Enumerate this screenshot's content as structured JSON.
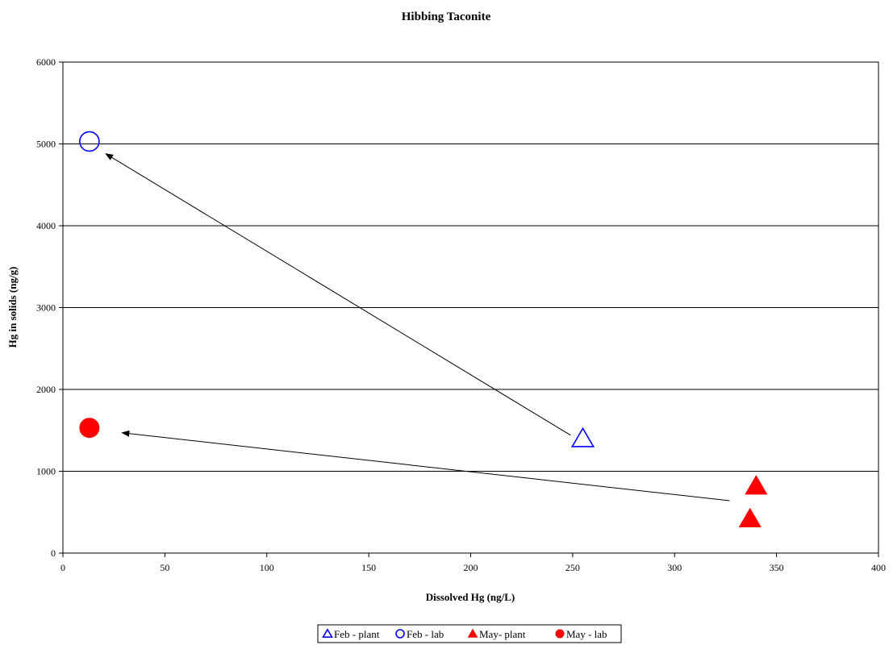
{
  "chart_data": {
    "type": "scatter",
    "title": "Hibbing Taconite",
    "xlabel": "Dissolved Hg (ng/L)",
    "ylabel": "Hg in solids (ng/g)",
    "xlim": [
      0,
      400
    ],
    "ylim": [
      0,
      6000
    ],
    "xticks": [
      "0",
      "50",
      "100",
      "150",
      "200",
      "250",
      "300",
      "350",
      "400"
    ],
    "yticks": [
      "0",
      "1000",
      "2000",
      "3000",
      "4000",
      "5000",
      "6000"
    ],
    "grid": "horizontal",
    "legend_position": "bottom",
    "series": [
      {
        "name": "Feb - plant",
        "marker": "triangle-open",
        "color": "#0000ff",
        "points": [
          {
            "x": 255,
            "y": 1400
          }
        ]
      },
      {
        "name": "Feb - lab",
        "marker": "circle-open",
        "color": "#0000ff",
        "points": [
          {
            "x": 13,
            "y": 5030
          }
        ]
      },
      {
        "name": "May- plant",
        "marker": "triangle-filled",
        "color": "#ff0000",
        "points": [
          {
            "x": 340,
            "y": 820
          },
          {
            "x": 337,
            "y": 420
          }
        ]
      },
      {
        "name": "May - lab",
        "marker": "circle-filled",
        "color": "#ff0000",
        "points": [
          {
            "x": 13,
            "y": 1530
          }
        ]
      }
    ],
    "arrows": [
      {
        "from": {
          "x": 249,
          "y": 1440
        },
        "to": {
          "x": 21,
          "y": 4880
        }
      },
      {
        "from": {
          "x": 327,
          "y": 640
        },
        "to": {
          "x": 29,
          "y": 1470
        }
      }
    ]
  }
}
